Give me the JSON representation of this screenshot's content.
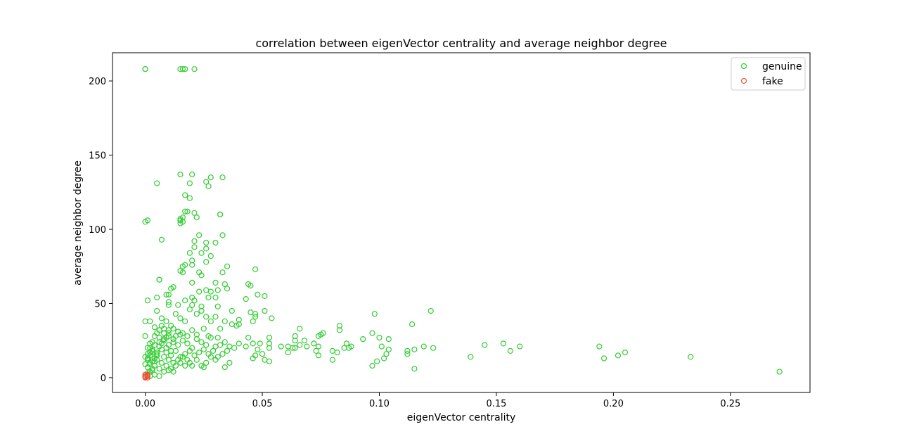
{
  "chart_data": {
    "type": "scatter",
    "title": "correlation between eigenVector centrality and average neighbor degree",
    "xlabel": "eigenVector centrality",
    "ylabel": "average neighbor degree",
    "xlim": [
      -0.014,
      0.284
    ],
    "ylim": [
      -10,
      219
    ],
    "xticks": [
      0.0,
      0.05,
      0.1,
      0.15,
      0.2,
      0.25
    ],
    "xtick_labels": [
      "0.00",
      "0.05",
      "0.10",
      "0.15",
      "0.20",
      "0.25"
    ],
    "yticks": [
      0,
      50,
      100,
      150,
      200
    ],
    "ytick_labels": [
      "0",
      "50",
      "100",
      "150",
      "200"
    ],
    "legend_position": "top-right",
    "grid": false,
    "series": [
      {
        "name": "genuine",
        "color": "#32cd32",
        "marker": "hollow-circle",
        "points": [
          [
            0.0,
            208
          ],
          [
            0.0,
            208
          ],
          [
            0.015,
            208
          ],
          [
            0.016,
            208
          ],
          [
            0.017,
            208
          ],
          [
            0.021,
            208
          ],
          [
            0.02,
            137
          ],
          [
            0.015,
            137
          ],
          [
            0.028,
            135
          ],
          [
            0.033,
            135
          ],
          [
            0.026,
            132
          ],
          [
            0.027,
            129
          ],
          [
            0.005,
            131
          ],
          [
            0.019,
            131
          ],
          [
            0.017,
            123
          ],
          [
            0.019,
            121
          ],
          [
            0.017,
            112
          ],
          [
            0.018,
            112
          ],
          [
            0.021,
            111
          ],
          [
            0.022,
            108
          ],
          [
            0.016,
            108
          ],
          [
            0.015,
            107
          ],
          [
            0.015,
            106
          ],
          [
            0.016,
            105
          ],
          [
            0.015,
            104
          ],
          [
            0.0,
            105
          ],
          [
            0.001,
            106
          ],
          [
            0.032,
            110
          ],
          [
            0.032,
            110
          ],
          [
            0.023,
            96
          ],
          [
            0.033,
            96
          ],
          [
            0.007,
            93
          ],
          [
            0.021,
            92
          ],
          [
            0.026,
            91
          ],
          [
            0.03,
            91
          ],
          [
            0.021,
            88
          ],
          [
            0.026,
            87
          ],
          [
            0.019,
            84
          ],
          [
            0.024,
            84
          ],
          [
            0.028,
            82
          ],
          [
            0.026,
            78
          ],
          [
            0.02,
            79
          ],
          [
            0.02,
            76
          ],
          [
            0.017,
            76
          ],
          [
            0.016,
            75
          ],
          [
            0.035,
            75
          ],
          [
            0.015,
            72
          ],
          [
            0.016,
            71
          ],
          [
            0.023,
            71
          ],
          [
            0.024,
            69
          ],
          [
            0.033,
            71
          ],
          [
            0.047,
            73
          ],
          [
            0.006,
            66
          ],
          [
            0.006,
            66
          ],
          [
            0.02,
            64
          ],
          [
            0.03,
            64
          ],
          [
            0.034,
            63
          ],
          [
            0.044,
            63
          ],
          [
            0.045,
            62
          ],
          [
            0.012,
            61
          ],
          [
            0.011,
            60
          ],
          [
            0.026,
            59
          ],
          [
            0.031,
            59
          ],
          [
            0.023,
            58
          ],
          [
            0.028,
            58
          ],
          [
            0.035,
            60
          ],
          [
            0.009,
            56
          ],
          [
            0.01,
            56
          ],
          [
            0.005,
            54
          ],
          [
            0.02,
            54
          ],
          [
            0.027,
            54
          ],
          [
            0.03,
            54
          ],
          [
            0.048,
            56
          ],
          [
            0.051,
            55
          ],
          [
            0.001,
            52
          ],
          [
            0.01,
            51
          ],
          [
            0.017,
            52
          ],
          [
            0.021,
            52
          ],
          [
            0.043,
            53
          ],
          [
            0.01,
            49
          ],
          [
            0.014,
            49
          ],
          [
            0.02,
            49
          ],
          [
            0.024,
            48
          ],
          [
            0.031,
            48
          ],
          [
            0.005,
            45
          ],
          [
            0.019,
            46
          ],
          [
            0.024,
            45
          ],
          [
            0.037,
            45
          ],
          [
            0.045,
            44
          ],
          [
            0.047,
            43
          ],
          [
            0.051,
            45
          ],
          [
            0.098,
            43
          ],
          [
            0.122,
            45
          ],
          [
            0.013,
            43
          ],
          [
            0.022,
            43
          ],
          [
            0.026,
            41
          ],
          [
            0.03,
            41
          ],
          [
            0.04,
            39
          ],
          [
            0.047,
            41
          ],
          [
            0.054,
            40
          ],
          [
            0.007,
            40
          ],
          [
            0.015,
            40
          ],
          [
            0.0,
            38
          ],
          [
            0.002,
            38
          ],
          [
            0.009,
            38
          ],
          [
            0.017,
            38
          ],
          [
            0.028,
            38
          ],
          [
            0.034,
            38
          ],
          [
            0.037,
            36
          ],
          [
            0.039,
            35
          ],
          [
            0.04,
            36
          ],
          [
            0.046,
            38
          ],
          [
            0.114,
            36
          ],
          [
            0.004,
            34
          ],
          [
            0.008,
            33
          ],
          [
            0.012,
            33
          ],
          [
            0.02,
            32
          ],
          [
            0.025,
            33
          ],
          [
            0.032,
            33
          ],
          [
            0.066,
            33
          ],
          [
            0.083,
            35
          ],
          [
            0.083,
            32
          ],
          [
            0.075,
            29
          ],
          [
            0.076,
            30
          ],
          [
            0.074,
            28
          ],
          [
            0.097,
            30
          ],
          [
            0.01,
            30
          ],
          [
            0.015,
            29
          ],
          [
            0.022,
            29
          ],
          [
            0.027,
            28
          ],
          [
            0.031,
            27
          ],
          [
            0.044,
            27
          ],
          [
            0.053,
            27
          ],
          [
            0.064,
            28
          ],
          [
            0.1,
            27
          ],
          [
            0.104,
            26
          ],
          [
            0.064,
            25
          ],
          [
            0.068,
            25
          ],
          [
            0.093,
            26
          ],
          [
            0.0,
            28
          ],
          [
            0.006,
            27
          ],
          [
            0.04,
            23
          ],
          [
            0.046,
            23
          ],
          [
            0.049,
            23
          ],
          [
            0.053,
            23
          ],
          [
            0.058,
            21
          ],
          [
            0.061,
            21
          ],
          [
            0.063,
            20
          ],
          [
            0.066,
            22
          ],
          [
            0.069,
            21
          ],
          [
            0.072,
            23
          ],
          [
            0.074,
            21
          ],
          [
            0.086,
            23
          ],
          [
            0.085,
            20
          ],
          [
            0.088,
            21
          ],
          [
            0.101,
            21
          ],
          [
            0.104,
            19
          ],
          [
            0.112,
            18
          ],
          [
            0.115,
            19
          ],
          [
            0.119,
            21
          ],
          [
            0.123,
            20
          ],
          [
            0.145,
            22
          ],
          [
            0.153,
            23
          ],
          [
            0.156,
            18
          ],
          [
            0.16,
            21
          ],
          [
            0.194,
            21
          ],
          [
            0.202,
            15
          ],
          [
            0.205,
            17
          ],
          [
            0.196,
            13
          ],
          [
            0.233,
            14
          ],
          [
            0.271,
            4
          ],
          [
            0.048,
            19
          ],
          [
            0.05,
            16
          ],
          [
            0.053,
            20
          ],
          [
            0.061,
            17
          ],
          [
            0.064,
            20
          ],
          [
            0.073,
            18
          ],
          [
            0.08,
            18
          ],
          [
            0.082,
            17
          ],
          [
            0.087,
            20
          ],
          [
            0.103,
            16
          ],
          [
            0.112,
            16
          ],
          [
            0.139,
            14
          ],
          [
            0.099,
            11
          ],
          [
            0.102,
            13
          ],
          [
            0.097,
            8
          ],
          [
            0.115,
            6
          ],
          [
            0.047,
            15
          ],
          [
            0.051,
            12
          ],
          [
            0.053,
            11
          ],
          [
            0.074,
            15
          ],
          [
            0.08,
            12
          ],
          [
            0.043,
            21
          ],
          [
            0.046,
            13
          ],
          [
            0.002,
            20
          ],
          [
            0.004,
            22
          ],
          [
            0.006,
            24
          ],
          [
            0.008,
            26
          ],
          [
            0.01,
            28
          ],
          [
            0.012,
            24
          ],
          [
            0.014,
            22
          ],
          [
            0.016,
            25
          ],
          [
            0.018,
            23
          ],
          [
            0.02,
            20
          ],
          [
            0.022,
            26
          ],
          [
            0.024,
            24
          ],
          [
            0.026,
            22
          ],
          [
            0.028,
            27
          ],
          [
            0.03,
            21
          ],
          [
            0.032,
            22
          ],
          [
            0.034,
            24
          ],
          [
            0.036,
            21
          ],
          [
            0.038,
            20
          ],
          [
            0.003,
            18
          ],
          [
            0.005,
            16
          ],
          [
            0.007,
            19
          ],
          [
            0.009,
            17
          ],
          [
            0.011,
            15
          ],
          [
            0.013,
            18
          ],
          [
            0.015,
            14
          ],
          [
            0.017,
            16
          ],
          [
            0.019,
            18
          ],
          [
            0.021,
            15
          ],
          [
            0.023,
            17
          ],
          [
            0.025,
            19
          ],
          [
            0.027,
            16
          ],
          [
            0.029,
            18
          ],
          [
            0.031,
            14
          ],
          [
            0.033,
            16
          ],
          [
            0.035,
            18
          ],
          [
            0.001,
            12
          ],
          [
            0.002,
            10
          ],
          [
            0.003,
            14
          ],
          [
            0.004,
            8
          ],
          [
            0.005,
            12
          ],
          [
            0.006,
            6
          ],
          [
            0.007,
            10
          ],
          [
            0.008,
            14
          ],
          [
            0.009,
            8
          ],
          [
            0.01,
            12
          ],
          [
            0.011,
            6
          ],
          [
            0.012,
            10
          ],
          [
            0.013,
            8
          ],
          [
            0.014,
            12
          ],
          [
            0.015,
            10
          ],
          [
            0.016,
            14
          ],
          [
            0.017,
            8
          ],
          [
            0.018,
            12
          ],
          [
            0.019,
            10
          ],
          [
            0.02,
            8
          ],
          [
            0.022,
            12
          ],
          [
            0.024,
            8
          ],
          [
            0.026,
            10
          ],
          [
            0.028,
            14
          ],
          [
            0.03,
            12
          ],
          [
            0.034,
            7
          ],
          [
            0.036,
            10
          ],
          [
            0.004,
            2
          ],
          [
            0.006,
            1
          ],
          [
            0.002,
            4
          ],
          [
            0.003,
            6
          ],
          [
            0.008,
            4
          ],
          [
            0.01,
            5
          ],
          [
            0.012,
            4
          ],
          [
            0.025,
            7
          ],
          [
            0.001,
            16
          ],
          [
            0.002,
            15
          ],
          [
            0.003,
            11
          ],
          [
            0.004,
            13
          ],
          [
            0.005,
            17
          ],
          [
            0.006,
            21
          ],
          [
            0.007,
            23
          ],
          [
            0.008,
            30
          ],
          [
            0.009,
            27
          ],
          [
            0.01,
            32
          ],
          [
            0.011,
            35
          ],
          [
            0.003,
            24
          ],
          [
            0.004,
            28
          ],
          [
            0.005,
            30
          ],
          [
            0.006,
            32
          ],
          [
            0.007,
            35
          ],
          [
            0.008,
            25
          ],
          [
            0.009,
            20
          ],
          [
            0.01,
            22
          ],
          [
            0.011,
            18
          ],
          [
            0.012,
            26
          ],
          [
            0.013,
            28
          ],
          [
            0.014,
            31
          ],
          [
            0.016,
            30
          ],
          [
            0.018,
            28
          ],
          [
            0.001,
            7
          ],
          [
            0.002,
            9
          ],
          [
            0.003,
            5
          ],
          [
            0.004,
            11
          ],
          [
            0.005,
            15
          ],
          [
            0.001,
            13
          ],
          [
            0.002,
            17
          ],
          [
            0.003,
            19
          ],
          [
            0.001,
            3
          ],
          [
            0.002,
            1
          ],
          [
            0.0,
            9
          ],
          [
            0.0,
            14
          ],
          [
            0.001,
            20
          ],
          [
            0.002,
            23
          ]
        ]
      },
      {
        "name": "fake",
        "color": "#e8573b",
        "marker": "hollow-circle",
        "points": [
          [
            0.0,
            0
          ],
          [
            0.0,
            1
          ],
          [
            0.0,
            2
          ],
          [
            0.001,
            0
          ],
          [
            0.001,
            1
          ],
          [
            0.001,
            2
          ],
          [
            0.0,
            0.5
          ],
          [
            0.001,
            1.5
          ]
        ]
      }
    ]
  }
}
